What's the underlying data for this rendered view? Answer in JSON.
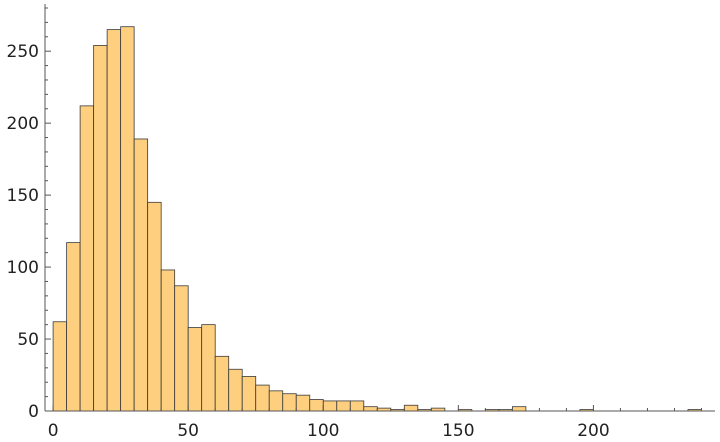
{
  "chart_data": {
    "type": "bar",
    "title": "",
    "xlabel": "",
    "ylabel": "",
    "xlim": [
      -3,
      245
    ],
    "ylim": [
      0,
      280
    ],
    "bin_width": 5,
    "grid": false,
    "colors": {
      "bar_fill": "#FECF7E",
      "bar_stroke": "#3a3a3a",
      "axis": "#555555"
    },
    "x_ticks": [
      0,
      50,
      100,
      150,
      200
    ],
    "y_ticks": [
      0,
      50,
      100,
      150,
      200,
      250
    ],
    "x_minor_step": 10,
    "y_minor_step": 10,
    "bins": [
      {
        "start": 0,
        "count": 62
      },
      {
        "start": 5,
        "count": 117
      },
      {
        "start": 10,
        "count": 212
      },
      {
        "start": 15,
        "count": 254
      },
      {
        "start": 20,
        "count": 265
      },
      {
        "start": 25,
        "count": 267
      },
      {
        "start": 30,
        "count": 189
      },
      {
        "start": 35,
        "count": 145
      },
      {
        "start": 40,
        "count": 98
      },
      {
        "start": 45,
        "count": 87
      },
      {
        "start": 50,
        "count": 58
      },
      {
        "start": 55,
        "count": 60
      },
      {
        "start": 60,
        "count": 38
      },
      {
        "start": 65,
        "count": 29
      },
      {
        "start": 70,
        "count": 24
      },
      {
        "start": 75,
        "count": 18
      },
      {
        "start": 80,
        "count": 14
      },
      {
        "start": 85,
        "count": 12
      },
      {
        "start": 90,
        "count": 11
      },
      {
        "start": 95,
        "count": 8
      },
      {
        "start": 100,
        "count": 7
      },
      {
        "start": 105,
        "count": 7
      },
      {
        "start": 110,
        "count": 7
      },
      {
        "start": 115,
        "count": 3
      },
      {
        "start": 120,
        "count": 2
      },
      {
        "start": 125,
        "count": 1
      },
      {
        "start": 130,
        "count": 4
      },
      {
        "start": 135,
        "count": 1
      },
      {
        "start": 140,
        "count": 2
      },
      {
        "start": 150,
        "count": 1
      },
      {
        "start": 160,
        "count": 1
      },
      {
        "start": 165,
        "count": 1
      },
      {
        "start": 170,
        "count": 3
      },
      {
        "start": 195,
        "count": 1
      },
      {
        "start": 235,
        "count": 1
      }
    ]
  }
}
